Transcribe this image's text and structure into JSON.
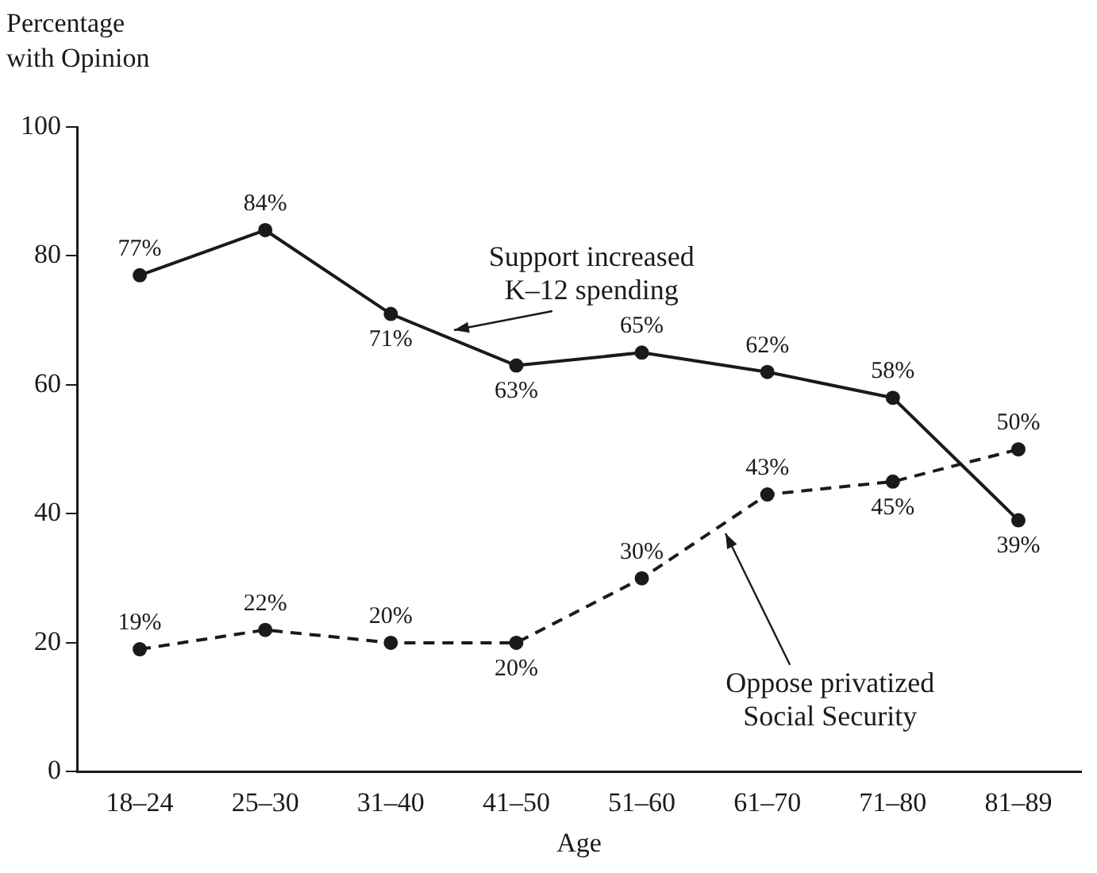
{
  "chart_data": {
    "type": "line",
    "ylabel": "Percentage\nwith Opinion",
    "xlabel": "Age",
    "categories": [
      "18–24",
      "25–30",
      "31–40",
      "41–50",
      "51–60",
      "61–70",
      "71–80",
      "81–89"
    ],
    "series": [
      {
        "name": "Support increased K–12 spending",
        "color": "#1a1a1a",
        "line_style": "solid",
        "values": [
          77,
          84,
          71,
          63,
          65,
          62,
          58,
          39
        ],
        "value_labels": [
          "77%",
          "84%",
          "71%",
          "63%",
          "65%",
          "62%",
          "58%",
          "39%"
        ]
      },
      {
        "name": "Oppose privatized Social Security",
        "color": "#1a1a1a",
        "line_style": "dashed",
        "values": [
          19,
          22,
          20,
          20,
          30,
          43,
          45,
          50
        ],
        "value_labels": [
          "19%",
          "22%",
          "20%",
          "20%",
          "30%",
          "43%",
          "45%",
          "50%"
        ]
      }
    ],
    "ylim": [
      0,
      100
    ],
    "yticks": [
      0,
      20,
      40,
      60,
      80,
      100
    ],
    "grid": false,
    "legend": false,
    "marker": "circle"
  }
}
